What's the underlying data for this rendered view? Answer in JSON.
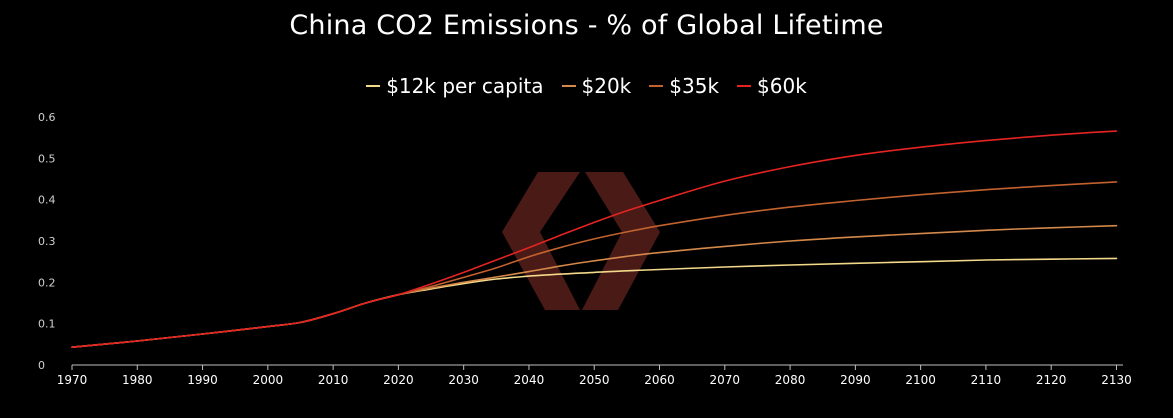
{
  "chart_data": {
    "type": "line",
    "title": "China CO2 Emissions - % of Global Lifetime",
    "xlabel": "",
    "ylabel": "",
    "xlim": [
      1970,
      2131
    ],
    "ylim": [
      0,
      0.6
    ],
    "x_ticks": [
      "1970",
      "1980",
      "1990",
      "2000",
      "2010",
      "2020",
      "2030",
      "2040",
      "2050",
      "2060",
      "2070",
      "2080",
      "2090",
      "2100",
      "2110",
      "2120",
      "2130"
    ],
    "y_ticks": [
      "0",
      "0.1",
      "0.2",
      "0.3",
      "0.4",
      "0.5",
      "0.6"
    ],
    "legend_position": "top-center",
    "grid": false,
    "x": [
      1970,
      1980,
      1990,
      2000,
      2005,
      2010,
      2015,
      2020,
      2025,
      2030,
      2035,
      2040,
      2045,
      2050,
      2055,
      2060,
      2070,
      2080,
      2090,
      2100,
      2110,
      2120,
      2130
    ],
    "series": [
      {
        "name": "$12k per capita",
        "color": "#f3d98a",
        "values": [
          0.043,
          0.058,
          0.075,
          0.093,
          0.103,
          0.124,
          0.15,
          0.17,
          0.184,
          0.197,
          0.208,
          0.215,
          0.22,
          0.224,
          0.228,
          0.231,
          0.237,
          0.242,
          0.246,
          0.25,
          0.254,
          0.256,
          0.258
        ]
      },
      {
        "name": "$20k",
        "color": "#d4894a",
        "values": [
          0.043,
          0.058,
          0.075,
          0.093,
          0.103,
          0.124,
          0.15,
          0.17,
          0.186,
          0.2,
          0.213,
          0.226,
          0.24,
          0.252,
          0.263,
          0.272,
          0.287,
          0.3,
          0.31,
          0.318,
          0.326,
          0.332,
          0.337
        ]
      },
      {
        "name": "$35k",
        "color": "#c2622e",
        "values": [
          0.043,
          0.058,
          0.075,
          0.093,
          0.103,
          0.124,
          0.15,
          0.17,
          0.19,
          0.212,
          0.235,
          0.262,
          0.285,
          0.305,
          0.322,
          0.337,
          0.362,
          0.382,
          0.398,
          0.412,
          0.424,
          0.434,
          0.443
        ]
      },
      {
        "name": "$60k",
        "color": "#e52421",
        "values": [
          0.043,
          0.058,
          0.075,
          0.093,
          0.103,
          0.124,
          0.15,
          0.17,
          0.196,
          0.224,
          0.254,
          0.284,
          0.315,
          0.345,
          0.373,
          0.398,
          0.445,
          0.48,
          0.507,
          0.527,
          0.543,
          0.556,
          0.566
        ]
      }
    ]
  },
  "watermark": {
    "icon": "hexagon-logo-icon",
    "color": "#4a1a17"
  }
}
